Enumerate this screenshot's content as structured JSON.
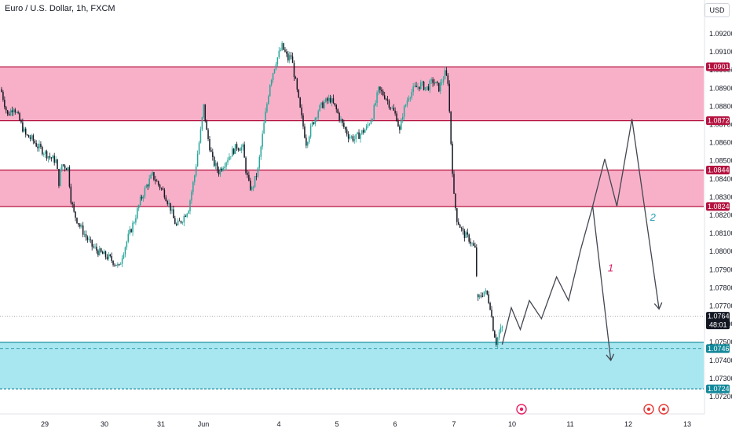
{
  "header": {
    "title": "Euro / U.S. Dollar, 1h, FXCM",
    "currency": "USD"
  },
  "colors": {
    "resistance_fill": "#f8b0c8",
    "resistance_line": "#b4123f",
    "support_fill": "#a8e6f0",
    "support_line": "#12889a",
    "up_candle": "#26a69a",
    "down_candle": "#131722",
    "projection": "#434651",
    "label_1": "#d81b60",
    "label_2": "#26a0b5",
    "current_tag": "#131722"
  },
  "chart_data": {
    "type": "candlestick",
    "symbol": "EURUSD",
    "interval": "1h",
    "ylim": [
      1.0715,
      1.0935
    ],
    "y_ticks": [
      "1.09200",
      "1.09100",
      "1.09000",
      "1.08900",
      "1.08800",
      "1.08700",
      "1.08600",
      "1.08500",
      "1.08400",
      "1.08300",
      "1.08200",
      "1.08100",
      "1.08000",
      "1.07900",
      "1.07800",
      "1.07700",
      "1.07600",
      "1.07500",
      "1.07400",
      "1.07300",
      "1.07200"
    ],
    "x_ticks": [
      "29",
      "30",
      "31",
      "Jun",
      "4",
      "5",
      "6",
      "7",
      "10",
      "11",
      "12",
      "13"
    ],
    "zones": [
      {
        "name": "resistance-upper",
        "top": 1.09018,
        "bottom": 1.08721,
        "top_label": "1.09018",
        "bottom_label": "1.08721"
      },
      {
        "name": "resistance-lower",
        "top": 1.08449,
        "bottom": 1.08248,
        "top_label": "1.08449",
        "bottom_label": "1.08248"
      },
      {
        "name": "support",
        "top": 1.075,
        "bottom": 1.07243,
        "top_label": "",
        "bottom_label": "1.07243"
      }
    ],
    "support_mid": {
      "value": 1.07465,
      "label": "1.07465"
    },
    "current_price": {
      "value": 1.07643,
      "label": "1.07643",
      "countdown": "48:01"
    },
    "price_path": [
      [
        0,
        1.0888
      ],
      [
        4,
        1.0875
      ],
      [
        8,
        1.088
      ],
      [
        12,
        1.0872
      ],
      [
        16,
        1.0864
      ],
      [
        20,
        1.0862
      ],
      [
        24,
        1.0858
      ],
      [
        28,
        1.0855
      ],
      [
        32,
        1.0852
      ],
      [
        36,
        1.085
      ],
      [
        38,
        1.0838
      ],
      [
        40,
        1.0848
      ],
      [
        44,
        1.0846
      ],
      [
        46,
        1.0829
      ],
      [
        48,
        1.0821
      ],
      [
        52,
        1.0814
      ],
      [
        56,
        1.0808
      ],
      [
        60,
        1.0803
      ],
      [
        64,
        1.08
      ],
      [
        68,
        1.0798
      ],
      [
        72,
        1.0796
      ],
      [
        76,
        1.0793
      ],
      [
        78,
        1.0791
      ],
      [
        80,
        1.0798
      ],
      [
        84,
        1.0808
      ],
      [
        88,
        1.0817
      ],
      [
        92,
        1.0828
      ],
      [
        96,
        1.0836
      ],
      [
        100,
        1.0842
      ],
      [
        104,
        1.0837
      ],
      [
        108,
        1.0832
      ],
      [
        112,
        1.0824
      ],
      [
        114,
        1.0818
      ],
      [
        116,
        1.0814
      ],
      [
        120,
        1.0818
      ],
      [
        124,
        1.0824
      ],
      [
        128,
        1.0842
      ],
      [
        132,
        1.0866
      ],
      [
        134,
        1.088
      ],
      [
        136,
        1.0866
      ],
      [
        140,
        1.085
      ],
      [
        144,
        1.0844
      ],
      [
        148,
        1.0849
      ],
      [
        152,
        1.0854
      ],
      [
        156,
        1.0858
      ],
      [
        160,
        1.0857
      ],
      [
        162,
        1.0845
      ],
      [
        164,
        1.0837
      ],
      [
        166,
        1.0834
      ],
      [
        170,
        1.0845
      ],
      [
        174,
        1.087
      ],
      [
        178,
        1.0893
      ],
      [
        182,
        1.0905
      ],
      [
        186,
        1.0913
      ],
      [
        190,
        1.0906
      ],
      [
        192,
        1.0908
      ],
      [
        194,
        1.0898
      ],
      [
        198,
        1.0878
      ],
      [
        202,
        1.086
      ],
      [
        206,
        1.087
      ],
      [
        210,
        1.0878
      ],
      [
        214,
        1.0882
      ],
      [
        218,
        1.0884
      ],
      [
        222,
        1.0878
      ],
      [
        226,
        1.087
      ],
      [
        230,
        1.0864
      ],
      [
        234,
        1.0862
      ],
      [
        238,
        1.0865
      ],
      [
        242,
        1.0868
      ],
      [
        246,
        1.0875
      ],
      [
        250,
        1.0889
      ],
      [
        254,
        1.0886
      ],
      [
        258,
        1.088
      ],
      [
        262,
        1.0874
      ],
      [
        264,
        1.0866
      ],
      [
        266,
        1.0876
      ],
      [
        270,
        1.0886
      ],
      [
        274,
        1.089
      ],
      [
        278,
        1.0892
      ],
      [
        282,
        1.089
      ],
      [
        286,
        1.0894
      ],
      [
        290,
        1.089
      ],
      [
        294,
        1.0898
      ],
      [
        296,
        1.0894
      ],
      [
        298,
        1.086
      ],
      [
        300,
        1.083
      ],
      [
        302,
        1.0818
      ],
      [
        306,
        1.081
      ],
      [
        310,
        1.0807
      ],
      [
        314,
        1.0801
      ],
      [
        316,
        1.0773
      ],
      [
        318,
        1.0776
      ],
      [
        320,
        1.0778
      ],
      [
        322,
        1.0776
      ],
      [
        324,
        1.077
      ],
      [
        326,
        1.0758
      ],
      [
        328,
        1.075
      ],
      [
        330,
        1.0755
      ],
      [
        332,
        1.0758
      ]
    ],
    "projection_main": [
      [
        332,
        1.07487
      ],
      [
        338,
        1.0769
      ],
      [
        344,
        1.0757
      ],
      [
        350,
        1.0773
      ],
      [
        358,
        1.0763
      ],
      [
        368,
        1.0786
      ],
      [
        376,
        1.0773
      ],
      [
        384,
        1.0801
      ],
      [
        392,
        1.0825
      ],
      [
        400,
        1.0851
      ],
      [
        408,
        1.0825
      ],
      [
        418,
        1.0873
      ],
      [
        436,
        1.07683
      ]
    ],
    "projection_alt": [
      [
        392,
        1.0825
      ],
      [
        404,
        1.074
      ]
    ],
    "wave_labels": [
      {
        "text": "1",
        "x": 402,
        "y": 1.0789,
        "color_key": "label_1"
      },
      {
        "text": "2",
        "x": 430,
        "y": 1.0817,
        "color_key": "label_2"
      }
    ]
  }
}
